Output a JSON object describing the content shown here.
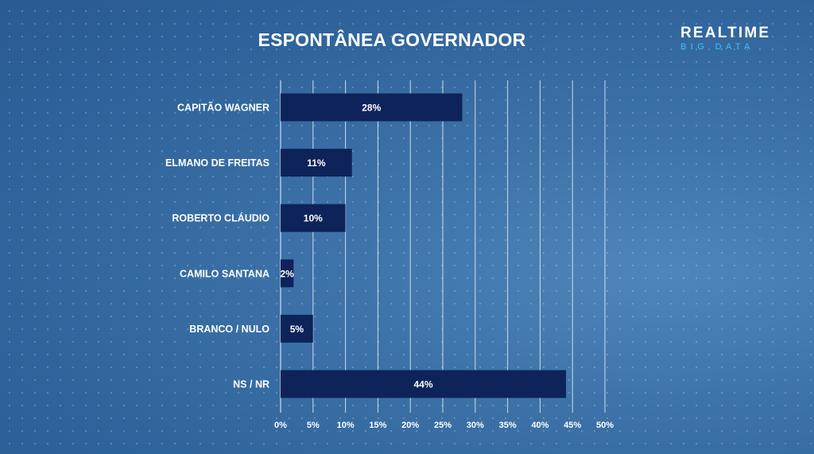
{
  "header": {
    "title": "ESPONTÂNEA GOVERNADOR",
    "logo_main": "REALTIME",
    "logo_sub": "BIG DATA"
  },
  "colors": {
    "bar": "#0e2359",
    "grid": "#ffffff",
    "text": "#ffffff",
    "logo_accent": "#3fc3f2"
  },
  "chart_data": {
    "type": "bar",
    "orientation": "horizontal",
    "title": "ESPONTÂNEA GOVERNADOR",
    "categories": [
      "CAPITÃO WAGNER",
      "ELMANO DE FREITAS",
      "ROBERTO CLÁUDIO",
      "CAMILO SANTANA",
      "BRANCO / NULO",
      "NS / NR"
    ],
    "values": [
      28,
      11,
      10,
      2,
      5,
      44
    ],
    "value_labels": [
      "28%",
      "11%",
      "10%",
      "2%",
      "5%",
      "44%"
    ],
    "unit": "%",
    "xlim": [
      0,
      50
    ],
    "x_ticks": [
      0,
      5,
      10,
      15,
      20,
      25,
      30,
      35,
      40,
      45,
      50
    ],
    "x_tick_labels": [
      "0%",
      "5%",
      "10%",
      "15%",
      "20%",
      "25%",
      "30%",
      "35%",
      "40%",
      "45%",
      "50%"
    ],
    "grid": true,
    "legend": "none"
  }
}
